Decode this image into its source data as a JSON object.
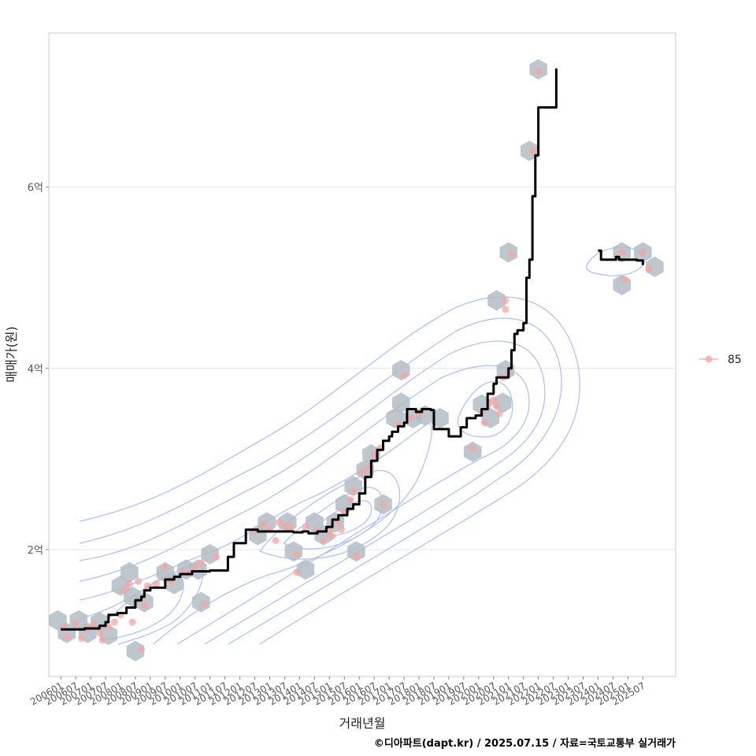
{
  "caption": "©디아파트(dapt.kr) / 2025.07.15 / 자료=국토교통부 실거래가",
  "colors": {
    "line": "#000000",
    "point": "#f4a6a6",
    "hex": "#b3bcc6",
    "contour": "#a9bdf0",
    "grid": "#e6e6e6",
    "border": "#cccccc"
  },
  "chart_data": {
    "type": "scatter",
    "xlabel": "거래년월",
    "ylabel": "매매가(원)",
    "x_ticks": [
      "200601",
      "200607",
      "200701",
      "200707",
      "200801",
      "200807",
      "200901",
      "200907",
      "201001",
      "201007",
      "201101",
      "201107",
      "201201",
      "201207",
      "201301",
      "201307",
      "201401",
      "201407",
      "201501",
      "201507",
      "201601",
      "201607",
      "201701",
      "201707",
      "201801",
      "201807",
      "201901",
      "201907",
      "202001",
      "202007",
      "202101",
      "202107",
      "202201",
      "202207",
      "202301",
      "202307",
      "202401",
      "202407",
      "202501",
      "202507"
    ],
    "y_ticks": [
      {
        "value": 2,
        "label": "2억"
      },
      {
        "value": 4,
        "label": "4억"
      },
      {
        "value": 6,
        "label": "6억"
      }
    ],
    "xlim": [
      2005.6,
      2026.6
    ],
    "ylim": [
      0.6,
      7.7
    ],
    "grid": true,
    "legend": {
      "position": "right",
      "entries": [
        "85"
      ]
    },
    "line_series": [
      {
        "x": 2006.0,
        "y": 1.12
      },
      {
        "x": 2006.5,
        "y": 1.12
      },
      {
        "x": 2006.8,
        "y": 1.13
      },
      {
        "x": 2007.0,
        "y": 1.13
      },
      {
        "x": 2007.3,
        "y": 1.16
      },
      {
        "x": 2007.5,
        "y": 1.2
      },
      {
        "x": 2007.6,
        "y": 1.28
      },
      {
        "x": 2007.9,
        "y": 1.3
      },
      {
        "x": 2008.2,
        "y": 1.36
      },
      {
        "x": 2008.5,
        "y": 1.44
      },
      {
        "x": 2008.7,
        "y": 1.48
      },
      {
        "x": 2008.8,
        "y": 1.55
      },
      {
        "x": 2009.0,
        "y": 1.58
      },
      {
        "x": 2009.4,
        "y": 1.58
      },
      {
        "x": 2009.5,
        "y": 1.67
      },
      {
        "x": 2009.8,
        "y": 1.7
      },
      {
        "x": 2010.0,
        "y": 1.73
      },
      {
        "x": 2010.4,
        "y": 1.76
      },
      {
        "x": 2010.9,
        "y": 1.76
      },
      {
        "x": 2011.0,
        "y": 1.77
      },
      {
        "x": 2011.5,
        "y": 1.77
      },
      {
        "x": 2011.6,
        "y": 1.92
      },
      {
        "x": 2011.8,
        "y": 2.07
      },
      {
        "x": 2012.1,
        "y": 2.07
      },
      {
        "x": 2012.2,
        "y": 2.22
      },
      {
        "x": 2012.5,
        "y": 2.22
      },
      {
        "x": 2012.6,
        "y": 2.2
      },
      {
        "x": 2013.2,
        "y": 2.2
      },
      {
        "x": 2013.8,
        "y": 2.19
      },
      {
        "x": 2014.1,
        "y": 2.2
      },
      {
        "x": 2014.3,
        "y": 2.18
      },
      {
        "x": 2014.6,
        "y": 2.2
      },
      {
        "x": 2014.9,
        "y": 2.25
      },
      {
        "x": 2015.1,
        "y": 2.33
      },
      {
        "x": 2015.3,
        "y": 2.38
      },
      {
        "x": 2015.6,
        "y": 2.45
      },
      {
        "x": 2015.8,
        "y": 2.5
      },
      {
        "x": 2016.0,
        "y": 2.62
      },
      {
        "x": 2016.2,
        "y": 2.8
      },
      {
        "x": 2016.4,
        "y": 2.98
      },
      {
        "x": 2016.6,
        "y": 3.1
      },
      {
        "x": 2016.8,
        "y": 3.2
      },
      {
        "x": 2017.0,
        "y": 3.25
      },
      {
        "x": 2017.1,
        "y": 3.3
      },
      {
        "x": 2017.3,
        "y": 3.36
      },
      {
        "x": 2017.5,
        "y": 3.4
      },
      {
        "x": 2017.6,
        "y": 3.55
      },
      {
        "x": 2017.9,
        "y": 3.52
      },
      {
        "x": 2018.1,
        "y": 3.55
      },
      {
        "x": 2018.4,
        "y": 3.54
      },
      {
        "x": 2018.5,
        "y": 3.33
      },
      {
        "x": 2018.9,
        "y": 3.33
      },
      {
        "x": 2019.0,
        "y": 3.25
      },
      {
        "x": 2019.3,
        "y": 3.25
      },
      {
        "x": 2019.4,
        "y": 3.35
      },
      {
        "x": 2019.6,
        "y": 3.45
      },
      {
        "x": 2019.9,
        "y": 3.48
      },
      {
        "x": 2020.1,
        "y": 3.55
      },
      {
        "x": 2020.3,
        "y": 3.72
      },
      {
        "x": 2020.5,
        "y": 3.83
      },
      {
        "x": 2020.6,
        "y": 3.9
      },
      {
        "x": 2020.9,
        "y": 3.9
      },
      {
        "x": 2021.0,
        "y": 4.0
      },
      {
        "x": 2021.1,
        "y": 4.2
      },
      {
        "x": 2021.2,
        "y": 4.38
      },
      {
        "x": 2021.3,
        "y": 4.42
      },
      {
        "x": 2021.5,
        "y": 4.5
      },
      {
        "x": 2021.6,
        "y": 5.0
      },
      {
        "x": 2021.7,
        "y": 5.2
      },
      {
        "x": 2021.8,
        "y": 5.9
      },
      {
        "x": 2021.9,
        "y": 6.35
      },
      {
        "x": 2022.0,
        "y": 6.88
      },
      {
        "x": 2022.5,
        "y": 6.88
      },
      {
        "x": 2022.6,
        "y": 7.31
      }
    ],
    "line_series_2": [
      {
        "x": 2024.0,
        "y": 5.3
      },
      {
        "x": 2024.1,
        "y": 5.2
      },
      {
        "x": 2024.5,
        "y": 5.2
      },
      {
        "x": 2024.6,
        "y": 5.23
      },
      {
        "x": 2024.7,
        "y": 5.2
      },
      {
        "x": 2025.3,
        "y": 5.19
      },
      {
        "x": 2025.5,
        "y": 5.14
      }
    ],
    "hex_centers": [
      {
        "x": 2005.9,
        "y": 1.22
      },
      {
        "x": 2006.2,
        "y": 1.08
      },
      {
        "x": 2006.6,
        "y": 1.22
      },
      {
        "x": 2006.9,
        "y": 1.08
      },
      {
        "x": 2007.3,
        "y": 1.2
      },
      {
        "x": 2007.6,
        "y": 1.06
      },
      {
        "x": 2008.0,
        "y": 1.6
      },
      {
        "x": 2008.3,
        "y": 1.75
      },
      {
        "x": 2008.4,
        "y": 1.48
      },
      {
        "x": 2008.5,
        "y": 0.88
      },
      {
        "x": 2008.8,
        "y": 1.42
      },
      {
        "x": 2009.5,
        "y": 1.75
      },
      {
        "x": 2009.8,
        "y": 1.62
      },
      {
        "x": 2010.2,
        "y": 1.78
      },
      {
        "x": 2010.6,
        "y": 1.78
      },
      {
        "x": 2010.7,
        "y": 1.42
      },
      {
        "x": 2011.0,
        "y": 1.95
      },
      {
        "x": 2012.6,
        "y": 2.16
      },
      {
        "x": 2012.9,
        "y": 2.3
      },
      {
        "x": 2013.6,
        "y": 2.3
      },
      {
        "x": 2013.8,
        "y": 1.98
      },
      {
        "x": 2014.2,
        "y": 1.78
      },
      {
        "x": 2014.5,
        "y": 2.3
      },
      {
        "x": 2014.8,
        "y": 2.16
      },
      {
        "x": 2015.2,
        "y": 2.3
      },
      {
        "x": 2015.5,
        "y": 2.5
      },
      {
        "x": 2015.8,
        "y": 2.7
      },
      {
        "x": 2015.9,
        "y": 1.98
      },
      {
        "x": 2016.2,
        "y": 2.88
      },
      {
        "x": 2016.4,
        "y": 3.05
      },
      {
        "x": 2016.8,
        "y": 2.5
      },
      {
        "x": 2017.2,
        "y": 3.45
      },
      {
        "x": 2017.4,
        "y": 3.98
      },
      {
        "x": 2017.4,
        "y": 3.62
      },
      {
        "x": 2017.8,
        "y": 3.45
      },
      {
        "x": 2018.2,
        "y": 3.48
      },
      {
        "x": 2018.7,
        "y": 3.45
      },
      {
        "x": 2019.8,
        "y": 3.08
      },
      {
        "x": 2020.1,
        "y": 3.6
      },
      {
        "x": 2020.4,
        "y": 3.45
      },
      {
        "x": 2020.8,
        "y": 3.62
      },
      {
        "x": 2020.6,
        "y": 4.75
      },
      {
        "x": 2020.9,
        "y": 3.98
      },
      {
        "x": 2021.0,
        "y": 5.28
      },
      {
        "x": 2021.7,
        "y": 6.4
      },
      {
        "x": 2022.0,
        "y": 7.3
      },
      {
        "x": 2024.8,
        "y": 5.28
      },
      {
        "x": 2024.8,
        "y": 4.92
      },
      {
        "x": 2025.5,
        "y": 5.28
      },
      {
        "x": 2025.9,
        "y": 5.12
      }
    ],
    "points": [
      {
        "x": 2006.1,
        "y": 1.15
      },
      {
        "x": 2006.2,
        "y": 1.04
      },
      {
        "x": 2006.5,
        "y": 1.18
      },
      {
        "x": 2006.7,
        "y": 1.02
      },
      {
        "x": 2006.9,
        "y": 1.13
      },
      {
        "x": 2007.1,
        "y": 1.18
      },
      {
        "x": 2007.3,
        "y": 1.08
      },
      {
        "x": 2007.4,
        "y": 1.0
      },
      {
        "x": 2007.6,
        "y": 1.15
      },
      {
        "x": 2007.8,
        "y": 1.2
      },
      {
        "x": 2008.0,
        "y": 1.28
      },
      {
        "x": 2008.1,
        "y": 1.55
      },
      {
        "x": 2008.3,
        "y": 1.62
      },
      {
        "x": 2008.4,
        "y": 1.2
      },
      {
        "x": 2008.6,
        "y": 1.65
      },
      {
        "x": 2008.8,
        "y": 1.38
      },
      {
        "x": 2008.9,
        "y": 1.6
      },
      {
        "x": 2008.7,
        "y": 0.9
      },
      {
        "x": 2009.2,
        "y": 1.62
      },
      {
        "x": 2009.5,
        "y": 1.8
      },
      {
        "x": 2009.7,
        "y": 1.66
      },
      {
        "x": 2010.1,
        "y": 1.75
      },
      {
        "x": 2010.3,
        "y": 1.74
      },
      {
        "x": 2010.5,
        "y": 1.8
      },
      {
        "x": 2010.7,
        "y": 1.85
      },
      {
        "x": 2010.8,
        "y": 1.4
      },
      {
        "x": 2011.2,
        "y": 1.92
      },
      {
        "x": 2012.5,
        "y": 2.2
      },
      {
        "x": 2012.8,
        "y": 2.28
      },
      {
        "x": 2013.0,
        "y": 2.22
      },
      {
        "x": 2013.2,
        "y": 2.1
      },
      {
        "x": 2013.3,
        "y": 2.3
      },
      {
        "x": 2013.5,
        "y": 2.25
      },
      {
        "x": 2013.7,
        "y": 2.25
      },
      {
        "x": 2013.9,
        "y": 1.75
      },
      {
        "x": 2013.9,
        "y": 1.95
      },
      {
        "x": 2014.2,
        "y": 2.25
      },
      {
        "x": 2014.6,
        "y": 2.2
      },
      {
        "x": 2014.8,
        "y": 2.1
      },
      {
        "x": 2015.0,
        "y": 2.2
      },
      {
        "x": 2015.1,
        "y": 2.15
      },
      {
        "x": 2015.3,
        "y": 2.3
      },
      {
        "x": 2015.4,
        "y": 2.22
      },
      {
        "x": 2015.5,
        "y": 2.42
      },
      {
        "x": 2015.7,
        "y": 2.55
      },
      {
        "x": 2015.8,
        "y": 2.65
      },
      {
        "x": 2015.9,
        "y": 1.92
      },
      {
        "x": 2016.1,
        "y": 2.85
      },
      {
        "x": 2016.3,
        "y": 2.9
      },
      {
        "x": 2016.5,
        "y": 3.05
      },
      {
        "x": 2016.7,
        "y": 3.12
      },
      {
        "x": 2016.8,
        "y": 2.5
      },
      {
        "x": 2017.3,
        "y": 3.38
      },
      {
        "x": 2017.5,
        "y": 3.92
      },
      {
        "x": 2017.7,
        "y": 3.45
      },
      {
        "x": 2018.0,
        "y": 3.5
      },
      {
        "x": 2019.8,
        "y": 3.12
      },
      {
        "x": 2020.1,
        "y": 3.5
      },
      {
        "x": 2020.2,
        "y": 3.4
      },
      {
        "x": 2020.4,
        "y": 3.62
      },
      {
        "x": 2020.5,
        "y": 3.65
      },
      {
        "x": 2020.6,
        "y": 3.58
      },
      {
        "x": 2020.7,
        "y": 3.5
      },
      {
        "x": 2020.8,
        "y": 3.9
      },
      {
        "x": 2020.9,
        "y": 4.65
      },
      {
        "x": 2020.9,
        "y": 4.75
      },
      {
        "x": 2021.0,
        "y": 3.95
      },
      {
        "x": 2021.1,
        "y": 5.25
      },
      {
        "x": 2021.8,
        "y": 6.4
      },
      {
        "x": 2022.0,
        "y": 7.28
      },
      {
        "x": 2024.8,
        "y": 5.28
      },
      {
        "x": 2024.9,
        "y": 4.98
      },
      {
        "x": 2025.5,
        "y": 5.28
      },
      {
        "x": 2025.7,
        "y": 5.1
      }
    ]
  }
}
